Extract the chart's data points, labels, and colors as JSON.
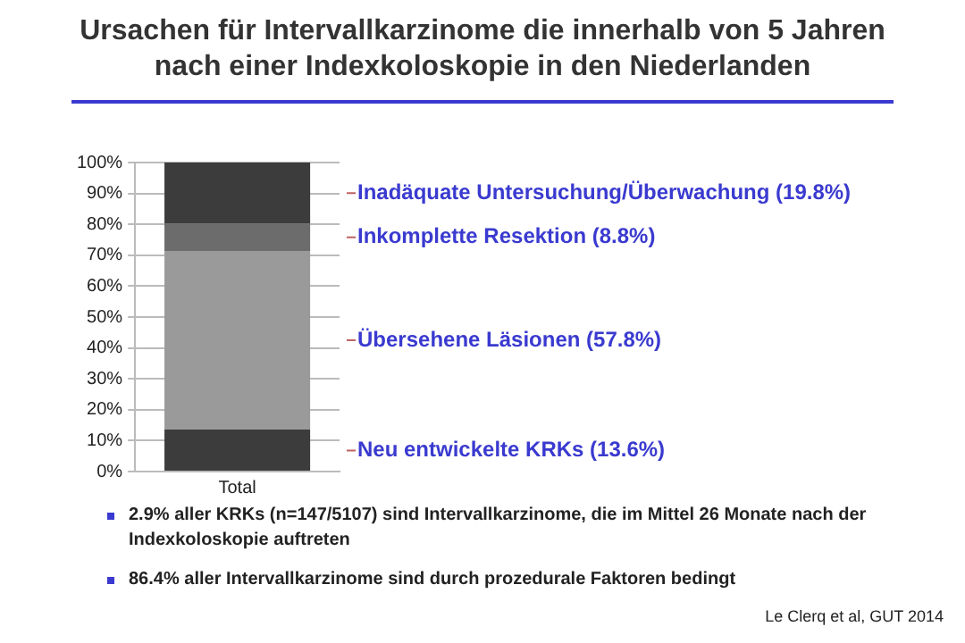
{
  "chart_data": {
    "type": "bar",
    "stacked": true,
    "title": "Ursachen für Intervallkarzinome die innerhalb von 5 Jahren nach einer Indexkoloskopie in den Niederlanden",
    "categories": [
      "Total"
    ],
    "series": [
      {
        "name": "Neu entwickelte KRKs (13.6%)",
        "color": "#3c3c3c",
        "values": [
          13.6
        ]
      },
      {
        "name": "Übersehene Läsionen (57.8%)",
        "color": "#9a9a9a",
        "values": [
          57.8
        ]
      },
      {
        "name": "Inkomplette Resektion (8.8%)",
        "color": "#6c6c6c",
        "values": [
          8.8
        ]
      },
      {
        "name": "Inadäquate Untersuchung/Überwachung (19.8%)",
        "color": "#3c3c3c",
        "values": [
          19.8
        ]
      }
    ],
    "ylim": [
      0,
      100
    ],
    "yticks": [
      {
        "value": 0,
        "label": "0%"
      },
      {
        "value": 10,
        "label": "10%"
      },
      {
        "value": 20,
        "label": "20%"
      },
      {
        "value": 30,
        "label": "30%"
      },
      {
        "value": 40,
        "label": "40%"
      },
      {
        "value": 50,
        "label": "50%"
      },
      {
        "value": 60,
        "label": "60%"
      },
      {
        "value": 70,
        "label": "70%"
      },
      {
        "value": 80,
        "label": "80%"
      },
      {
        "value": 90,
        "label": "90%"
      },
      {
        "value": 100,
        "label": "100%"
      }
    ],
    "grid": "y",
    "legend": false,
    "annotations": [
      "2.9% aller KRKs (n=147/5107) sind Intervallkarzinome, die im Mittel 26 Monate nach der Indexkoloskopie auftreten",
      "86.4% aller Intervallkarzinome sind durch prozedurale Faktoren bedingt",
      "Le Clerq et al, GUT 2014"
    ]
  }
}
